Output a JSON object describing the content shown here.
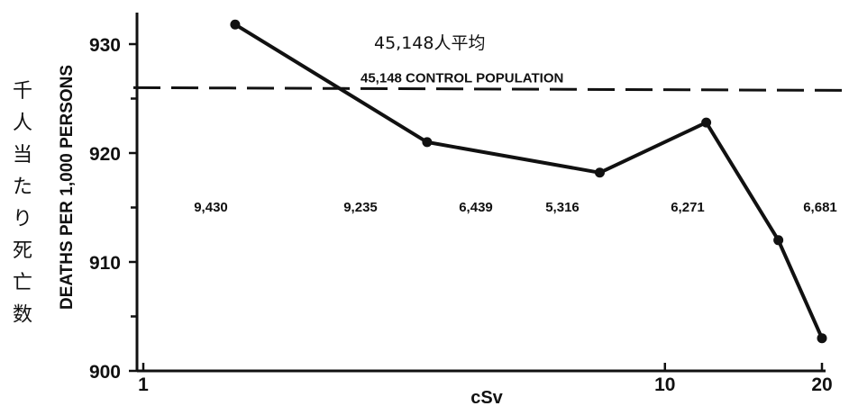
{
  "chart_data": {
    "type": "line",
    "annotation": "45,148人平均",
    "ylabel": "DEATHS PER 1,000 PERSONS",
    "ylabel_japanese": "千人当たり死亡数",
    "xlabel": "cSv",
    "x_scale": "log",
    "xlim": [
      1,
      20
    ],
    "ylim": [
      900,
      934
    ],
    "x_ticks": [
      {
        "value": 1,
        "label": "1"
      },
      {
        "value": 10,
        "label": "10"
      },
      {
        "value": 20,
        "label": "20"
      }
    ],
    "y_ticks": [
      {
        "value": 900,
        "label": "900"
      },
      {
        "value": 910,
        "label": "910"
      },
      {
        "value": 920,
        "label": "920"
      },
      {
        "value": 930,
        "label": "930"
      }
    ],
    "reference_line": {
      "label": "45,148 CONTROL POPULATION",
      "y": 926
    },
    "series": [
      {
        "x": [
          1.5,
          3.5,
          7.5,
          12.0,
          16.5,
          20.0
        ],
        "y": [
          931.8,
          921.0,
          918.2,
          922.8,
          912.0,
          903.0
        ],
        "group_counts": [
          "9,430",
          "9,235",
          "6,439",
          "5,316",
          "6,271",
          "6,681"
        ]
      }
    ],
    "grid": false,
    "colors": {
      "line": "#111111",
      "background": "#ffffff"
    }
  }
}
